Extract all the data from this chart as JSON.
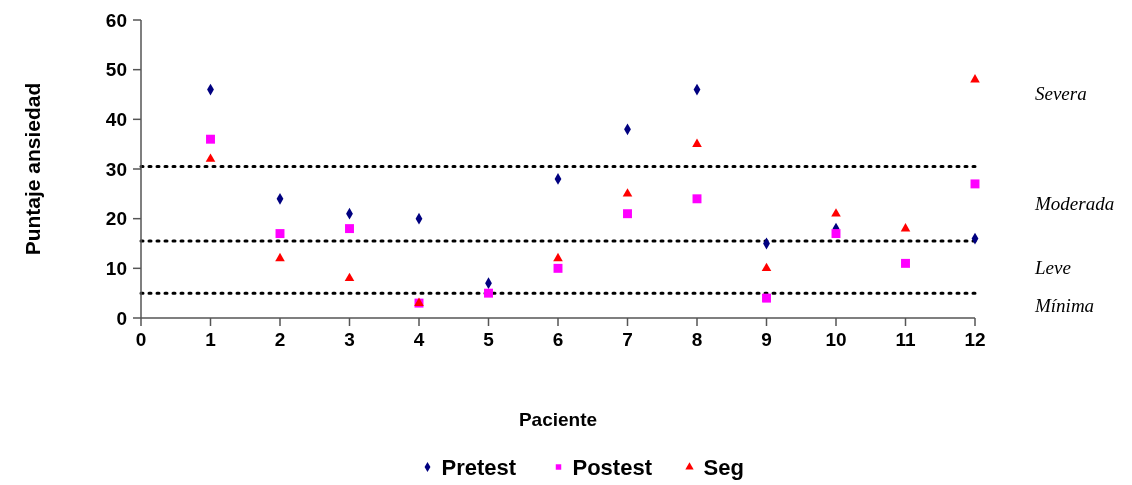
{
  "chart_data": {
    "type": "scatter",
    "xlabel": "Paciente",
    "ylabel": "Puntaje ansiedad",
    "x": [
      1,
      2,
      3,
      4,
      5,
      6,
      7,
      8,
      9,
      10,
      11,
      12
    ],
    "xlim": [
      0,
      12
    ],
    "xticks": [
      0,
      1,
      2,
      3,
      4,
      5,
      6,
      7,
      8,
      9,
      10,
      11,
      12
    ],
    "ylim": [
      0,
      60
    ],
    "yticks": [
      0,
      10,
      20,
      30,
      40,
      50,
      60
    ],
    "grid": false,
    "legend": "bottom",
    "series": [
      {
        "name": "Pretest",
        "color": "#000080",
        "marker": "diamond",
        "values": [
          46,
          24,
          21,
          20,
          7,
          28,
          38,
          46,
          15,
          18,
          null,
          16
        ]
      },
      {
        "name": "Postest",
        "color": "#ff00ff",
        "marker": "square",
        "values": [
          36,
          17,
          18,
          3,
          5,
          10,
          21,
          24,
          4,
          17,
          11,
          27
        ]
      },
      {
        "name": "Seg",
        "color": "#ff0000",
        "marker": "triangle",
        "values": [
          32,
          12,
          8,
          3,
          null,
          12,
          25,
          35,
          10,
          21,
          18,
          48
        ]
      }
    ],
    "ref_lines": [
      {
        "axis": "y",
        "value": 30.5,
        "color": "#000000",
        "line_style": "dotted"
      },
      {
        "axis": "y",
        "value": 15.5,
        "color": "#000000",
        "line_style": "dotted"
      },
      {
        "axis": "y",
        "value": 5,
        "color": "#000000",
        "line_style": "dotted"
      }
    ],
    "annotations": [
      "Severa",
      "Moderada",
      "Leve",
      "Mínima"
    ]
  }
}
